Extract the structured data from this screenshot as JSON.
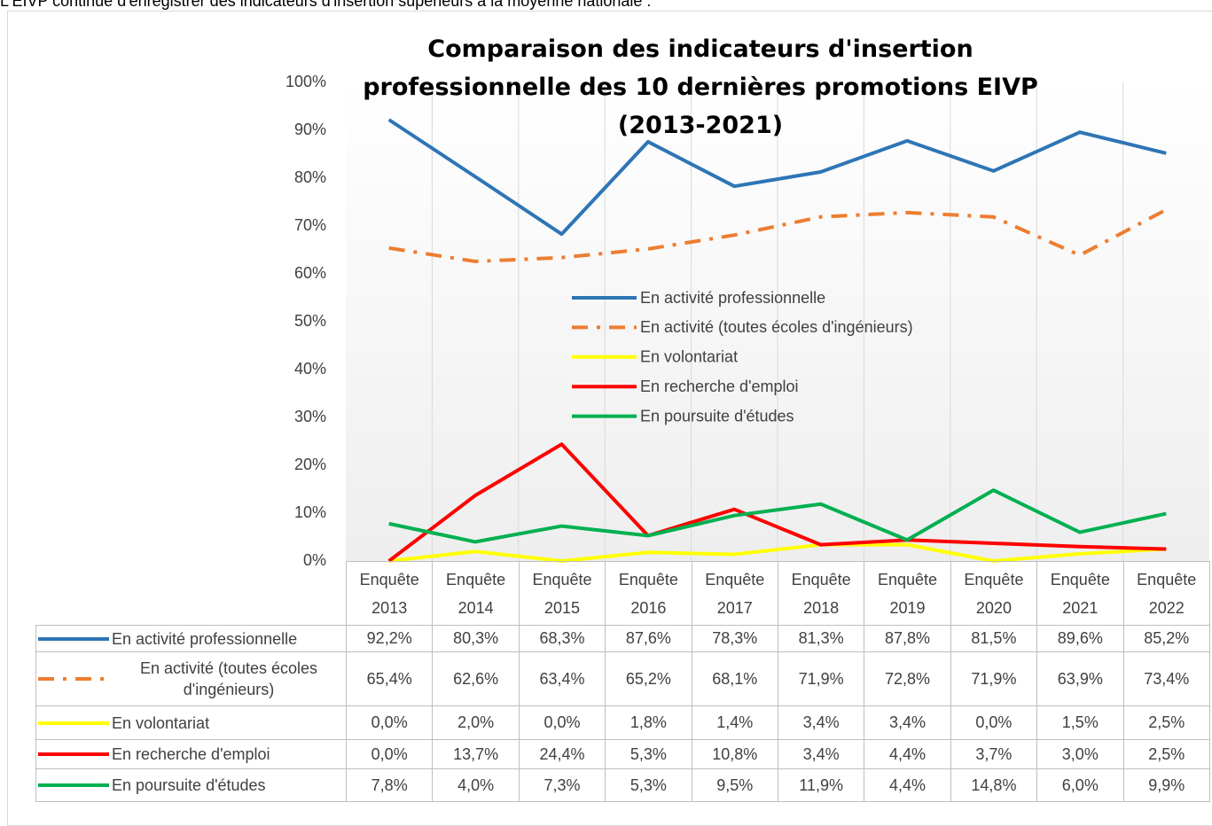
{
  "caption": "L'EIVP continue d'enregistrer des indicateurs d'insertion supérieurs à la moyenne nationale :",
  "chart_data": {
    "type": "line",
    "title": "Comparaison des indicateurs d'insertion professionnelle des 10 dernières promotions EIVP (2013-2021)",
    "categories": [
      "Enquête 2013",
      "Enquête 2014",
      "Enquête 2015",
      "Enquête 2016",
      "Enquête 2017",
      "Enquête 2018",
      "Enquête 2019",
      "Enquête 2020",
      "Enquête 2021",
      "Enquête 2022"
    ],
    "ylim": [
      0,
      100
    ],
    "yticks": [
      {
        "value": 0,
        "label": "0%"
      },
      {
        "value": 10,
        "label": "10%"
      },
      {
        "value": 20,
        "label": "20%"
      },
      {
        "value": 30,
        "label": "30%"
      },
      {
        "value": 40,
        "label": "40%"
      },
      {
        "value": 50,
        "label": "50%"
      },
      {
        "value": 60,
        "label": "60%"
      },
      {
        "value": 70,
        "label": "70%"
      },
      {
        "value": 80,
        "label": "80%"
      },
      {
        "value": 90,
        "label": "90%"
      },
      {
        "value": 100,
        "label": "100%"
      }
    ],
    "series": [
      {
        "name": "En activité professionnelle",
        "color": "#2e75b6",
        "dash": "solid",
        "values": [
          92.2,
          80.3,
          68.3,
          87.6,
          78.3,
          81.3,
          87.8,
          81.5,
          89.6,
          85.2
        ],
        "value_labels": [
          "92,2%",
          "80,3%",
          "68,3%",
          "87,6%",
          "78,3%",
          "81,3%",
          "87,8%",
          "81,5%",
          "89,6%",
          "85,2%"
        ]
      },
      {
        "name": "En activité (toutes écoles d'ingénieurs)",
        "color": "#ed7d31",
        "dash": "dash-dot",
        "values": [
          65.4,
          62.6,
          63.4,
          65.2,
          68.1,
          71.9,
          72.8,
          71.9,
          63.9,
          73.4
        ],
        "value_labels": [
          "65,4%",
          "62,6%",
          "63,4%",
          "65,2%",
          "68,1%",
          "71,9%",
          "72,8%",
          "71,9%",
          "63,9%",
          "73,4%"
        ]
      },
      {
        "name": "En volontariat",
        "color": "#ffff00",
        "dash": "solid",
        "values": [
          0.0,
          2.0,
          0.0,
          1.8,
          1.4,
          3.4,
          3.4,
          0.0,
          1.5,
          2.5
        ],
        "value_labels": [
          "0,0%",
          "2,0%",
          "0,0%",
          "1,8%",
          "1,4%",
          "3,4%",
          "3,4%",
          "0,0%",
          "1,5%",
          "2,5%"
        ]
      },
      {
        "name": "En recherche d'emploi",
        "color": "#ff0000",
        "dash": "solid",
        "values": [
          0.0,
          13.7,
          24.4,
          5.3,
          10.8,
          3.4,
          4.4,
          3.7,
          3.0,
          2.5
        ],
        "value_labels": [
          "0,0%",
          "13,7%",
          "24,4%",
          "5,3%",
          "10,8%",
          "3,4%",
          "4,4%",
          "3,7%",
          "3,0%",
          "2,5%"
        ]
      },
      {
        "name": "En poursuite d'études",
        "color": "#00b050",
        "dash": "solid",
        "values": [
          7.8,
          4.0,
          7.3,
          5.3,
          9.5,
          11.9,
          4.4,
          14.8,
          6.0,
          9.9
        ],
        "value_labels": [
          "7,8%",
          "4,0%",
          "7,3%",
          "5,3%",
          "9,5%",
          "11,9%",
          "4,4%",
          "14,8%",
          "6,0%",
          "9,9%"
        ]
      }
    ]
  }
}
